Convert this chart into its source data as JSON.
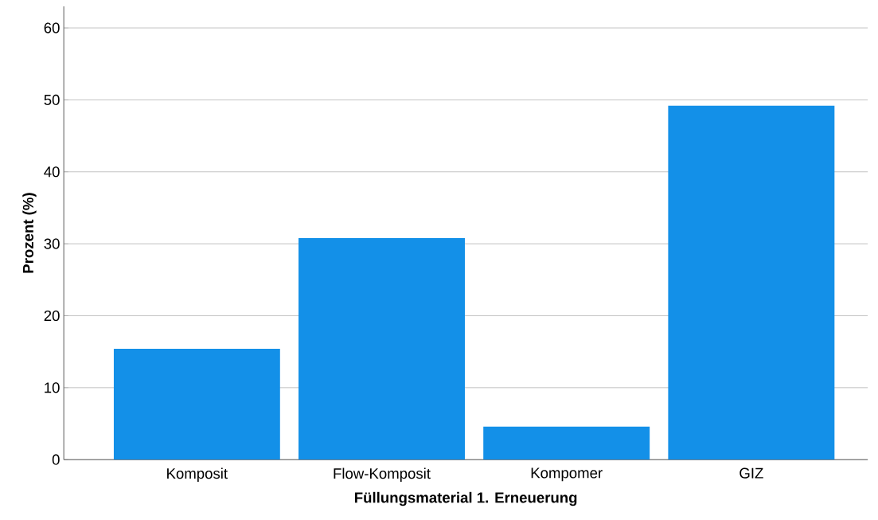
{
  "chart_data": {
    "type": "bar",
    "xlabel": "Füllungsmaterial 1. Erneuerung",
    "ylabel": "Prozent (%)",
    "categories": [
      "Komposit",
      "Flow-Komposit",
      "Kompomer",
      "GIZ"
    ],
    "values": [
      15.4,
      30.8,
      4.6,
      49.2
    ],
    "color": "#1390e8",
    "ylim": [
      0,
      63
    ],
    "yticks": [
      0,
      10,
      20,
      30,
      40,
      50,
      60
    ],
    "grid": "y"
  }
}
